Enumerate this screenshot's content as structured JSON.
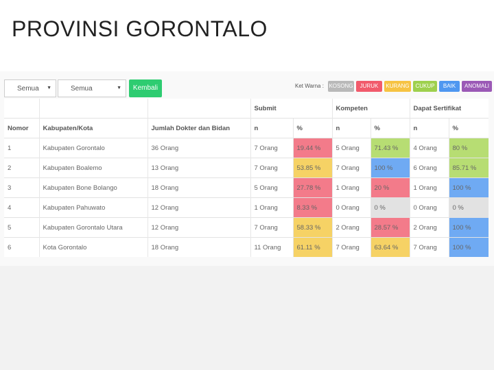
{
  "slide": {
    "title": "PROVINSI GORONTALO"
  },
  "filters": {
    "select1": "Semua",
    "select2": "Semua",
    "back_button": "Kembali"
  },
  "legend": {
    "label": "Ket Warna :",
    "items": [
      {
        "label": "KOSONG",
        "color": "#b9b9b9"
      },
      {
        "label": "JURUK",
        "color": "#f15b6c"
      },
      {
        "label": "KURANG",
        "color": "#f6c343"
      },
      {
        "label": "CUKUP",
        "color": "#9ed04e"
      },
      {
        "label": "BAIK",
        "color": "#4f97f0"
      },
      {
        "label": "ANOMALI",
        "color": "#9b59b6"
      }
    ]
  },
  "table": {
    "group_headers": [
      "Submit",
      "Kompeten",
      "Dapat Sertifikat"
    ],
    "columns": [
      "Nomor",
      "Kabupaten/Kota",
      "Jumlah Dokter dan Bidan",
      "n",
      "%",
      "n",
      "%",
      "n",
      "%"
    ],
    "rows": [
      {
        "no": "1",
        "kab": "Kabupaten Gorontalo",
        "jumlah": "36 Orang",
        "s_n": "7 Orang",
        "s_p": "19.44 %",
        "k_n": "5 Orang",
        "k_p": "71.43 %",
        "d_n": "4 Orang",
        "d_p": "80 %",
        "s_c": "jelek",
        "k_c": "cukup",
        "d_c": "cukup"
      },
      {
        "no": "2",
        "kab": "Kabupaten Boalemo",
        "jumlah": "13 Orang",
        "s_n": "7 Orang",
        "s_p": "53.85 %",
        "k_n": "7 Orang",
        "k_p": "100 %",
        "d_n": "6 Orang",
        "d_p": "85.71 %",
        "s_c": "kurang",
        "k_c": "baik",
        "d_c": "cukup"
      },
      {
        "no": "3",
        "kab": "Kabupaten Bone Bolango",
        "jumlah": "18 Orang",
        "s_n": "5 Orang",
        "s_p": "27.78 %",
        "k_n": "1 Orang",
        "k_p": "20 %",
        "d_n": "1 Orang",
        "d_p": "100 %",
        "s_c": "jelek",
        "k_c": "jelek",
        "d_c": "baik"
      },
      {
        "no": "4",
        "kab": "Kabupaten Pahuwato",
        "jumlah": "12 Orang",
        "s_n": "1 Orang",
        "s_p": "8.33 %",
        "k_n": "0 Orang",
        "k_p": "0 %",
        "d_n": "0 Orang",
        "d_p": "0 %",
        "s_c": "jelek",
        "k_c": "kosong",
        "d_c": "kosong"
      },
      {
        "no": "5",
        "kab": "Kabupaten Gorontalo Utara",
        "jumlah": "12 Orang",
        "s_n": "7 Orang",
        "s_p": "58.33 %",
        "k_n": "2 Orang",
        "k_p": "28.57 %",
        "d_n": "2 Orang",
        "d_p": "100 %",
        "s_c": "kurang",
        "k_c": "jelek",
        "d_c": "baik"
      },
      {
        "no": "6",
        "kab": "Kota Gorontalo",
        "jumlah": "18 Orang",
        "s_n": "11 Orang",
        "s_p": "61.11 %",
        "k_n": "7 Orang",
        "k_p": "63.64 %",
        "d_n": "7 Orang",
        "d_p": "100 %",
        "s_c": "kurang",
        "k_c": "kurang",
        "d_c": "baik"
      }
    ]
  }
}
